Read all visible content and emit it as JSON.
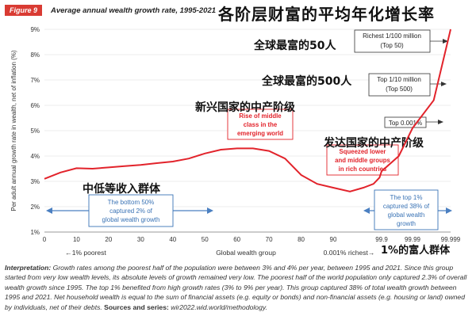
{
  "figure_tag": "Figure 9",
  "title": "Average annual wealth growth rate, 1995-2021",
  "cn_title": "各阶层财富的平均年化增长率",
  "interpretation": {
    "lead": "Interpretation:",
    "body": " Growth rates among the poorest half of the population were between 3% and 4% per year, between 1995 and 2021. Since this group started from very low wealth levels, its absolute levels of growth remained very low. The poorest half of the world population only captured 2.3% of overall wealth growth since 1995. The top 1% benefited from high growth rates (3% to 9% per year). This group captured 38% of total wealth growth between 1995 and 2021. Net household wealth is equal to the sum of financial assets (e.g. equity or bonds) and non-financial assets (e.g. housing or land) owned by individuals, net of their debts. ",
    "sources_label": "Sources and series:",
    "sources": " wir2022.wid.world/methodology."
  },
  "colors": {
    "line": "#e2232b",
    "accent": "#d93b33",
    "box_blue": "#3a73b5",
    "grid": "#dddddd",
    "arrow_blue": "#4a7fc1"
  },
  "chart_data": {
    "type": "line",
    "ylabel": "Per adult annual growth rate in wealth, net of inflation (%)",
    "xlabel": "Global wealth group",
    "x_left_label": "←1% poorest",
    "x_right_label": "0.001% richest→",
    "ylim": [
      1,
      9
    ],
    "yticks": [
      "1%",
      "2%",
      "3%",
      "4%",
      "5%",
      "6%",
      "7%",
      "8%",
      "9%"
    ],
    "xticks": [
      "0",
      "10",
      "20",
      "30",
      "40",
      "50",
      "60",
      "70",
      "80",
      "90",
      "99.9",
      "99.99",
      "99.999"
    ],
    "grid": true,
    "series": [
      {
        "x": [
          0,
          5,
          10,
          15,
          20,
          25,
          30,
          35,
          40,
          45,
          50,
          55,
          60,
          65,
          70,
          75,
          80,
          85,
          90,
          95,
          99,
          99.5,
          99.8,
          99.9,
          99.95,
          99.99,
          99.995,
          99.999
        ],
        "y": [
          3.1,
          3.35,
          3.52,
          3.5,
          3.55,
          3.6,
          3.65,
          3.72,
          3.78,
          3.9,
          4.1,
          4.25,
          4.3,
          4.3,
          4.2,
          3.9,
          3.25,
          2.9,
          2.75,
          2.6,
          2.75,
          2.9,
          3.15,
          3.4,
          4.0,
          5.1,
          6.2,
          9.0
        ]
      }
    ],
    "annotations": [
      {
        "id": "richest-50",
        "text": [
          "Richest 1/100 million",
          "(Top 50)"
        ]
      },
      {
        "id": "top-500",
        "text": [
          "Top 1/10 million",
          "(Top 500)"
        ]
      },
      {
        "id": "top-0001",
        "text": [
          "Top 0.001%"
        ]
      },
      {
        "id": "emerging-middle",
        "text": [
          "Rise of middle",
          "class in the",
          "emerging world"
        ]
      },
      {
        "id": "rich-squeezed",
        "text": [
          "Squeezed lower",
          "and middle groups",
          "in rich countries"
        ]
      },
      {
        "id": "bottom-50",
        "text": [
          "The bottom 50%",
          "captured 2% of",
          "global wealth growth"
        ]
      },
      {
        "id": "top-1",
        "text": [
          "The top 1%",
          "captured 38% of",
          "global wealth",
          "growth"
        ]
      }
    ],
    "cn_labels": {
      "top50": "全球最富的50人",
      "top500": "全球最富的500人",
      "emerging": "新兴国家的中产阶级",
      "developed": "发达国家的中产阶级",
      "lower_middle": "中低等收入群体",
      "top1": "1%的富人群体"
    }
  }
}
